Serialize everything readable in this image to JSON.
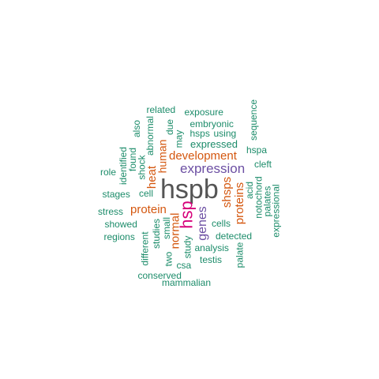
{
  "colors": {
    "dark": "#555555",
    "magenta": "#d6007a",
    "purple": "#6c4fa3",
    "orange": "#d4570f",
    "teal": "#1c8c6a"
  },
  "words": [
    {
      "text": "hspb",
      "color": "dark"
    },
    {
      "text": "hsp",
      "color": "magenta"
    },
    {
      "text": "expression",
      "color": "purple"
    },
    {
      "text": "genes",
      "color": "purple"
    },
    {
      "text": "development",
      "color": "orange"
    },
    {
      "text": "heat",
      "color": "orange"
    },
    {
      "text": "protein",
      "color": "orange"
    },
    {
      "text": "normal",
      "color": "orange"
    },
    {
      "text": "shsps",
      "color": "orange"
    },
    {
      "text": "proteins",
      "color": "orange"
    },
    {
      "text": "human",
      "color": "orange"
    },
    {
      "text": "expressed",
      "color": "teal"
    },
    {
      "text": "related",
      "color": "teal"
    },
    {
      "text": "exposure",
      "color": "teal"
    },
    {
      "text": "embryonic",
      "color": "teal"
    },
    {
      "text": "hsps",
      "color": "teal"
    },
    {
      "text": "using",
      "color": "teal"
    },
    {
      "text": "also",
      "color": "teal"
    },
    {
      "text": "due",
      "color": "teal"
    },
    {
      "text": "may",
      "color": "teal"
    },
    {
      "text": "abnormal",
      "color": "teal"
    },
    {
      "text": "sequence",
      "color": "teal"
    },
    {
      "text": "hspa",
      "color": "teal"
    },
    {
      "text": "identified",
      "color": "teal"
    },
    {
      "text": "found",
      "color": "teal"
    },
    {
      "text": "shock",
      "color": "teal"
    },
    {
      "text": "cleft",
      "color": "teal"
    },
    {
      "text": "role",
      "color": "teal"
    },
    {
      "text": "acid",
      "color": "teal"
    },
    {
      "text": "notochord",
      "color": "teal"
    },
    {
      "text": "palates",
      "color": "teal"
    },
    {
      "text": "expressional",
      "color": "teal"
    },
    {
      "text": "stages",
      "color": "teal"
    },
    {
      "text": "cell",
      "color": "teal"
    },
    {
      "text": "stress",
      "color": "teal"
    },
    {
      "text": "showed",
      "color": "teal"
    },
    {
      "text": "regions",
      "color": "teal"
    },
    {
      "text": "small",
      "color": "teal"
    },
    {
      "text": "studies",
      "color": "teal"
    },
    {
      "text": "different",
      "color": "teal"
    },
    {
      "text": "two",
      "color": "teal"
    },
    {
      "text": "study",
      "color": "teal"
    },
    {
      "text": "cells",
      "color": "teal"
    },
    {
      "text": "detected",
      "color": "teal"
    },
    {
      "text": "analysis",
      "color": "teal"
    },
    {
      "text": "testis",
      "color": "teal"
    },
    {
      "text": "palate",
      "color": "teal"
    },
    {
      "text": "csa",
      "color": "teal"
    },
    {
      "text": "conserved",
      "color": "teal"
    },
    {
      "text": "mammalian",
      "color": "teal"
    }
  ]
}
